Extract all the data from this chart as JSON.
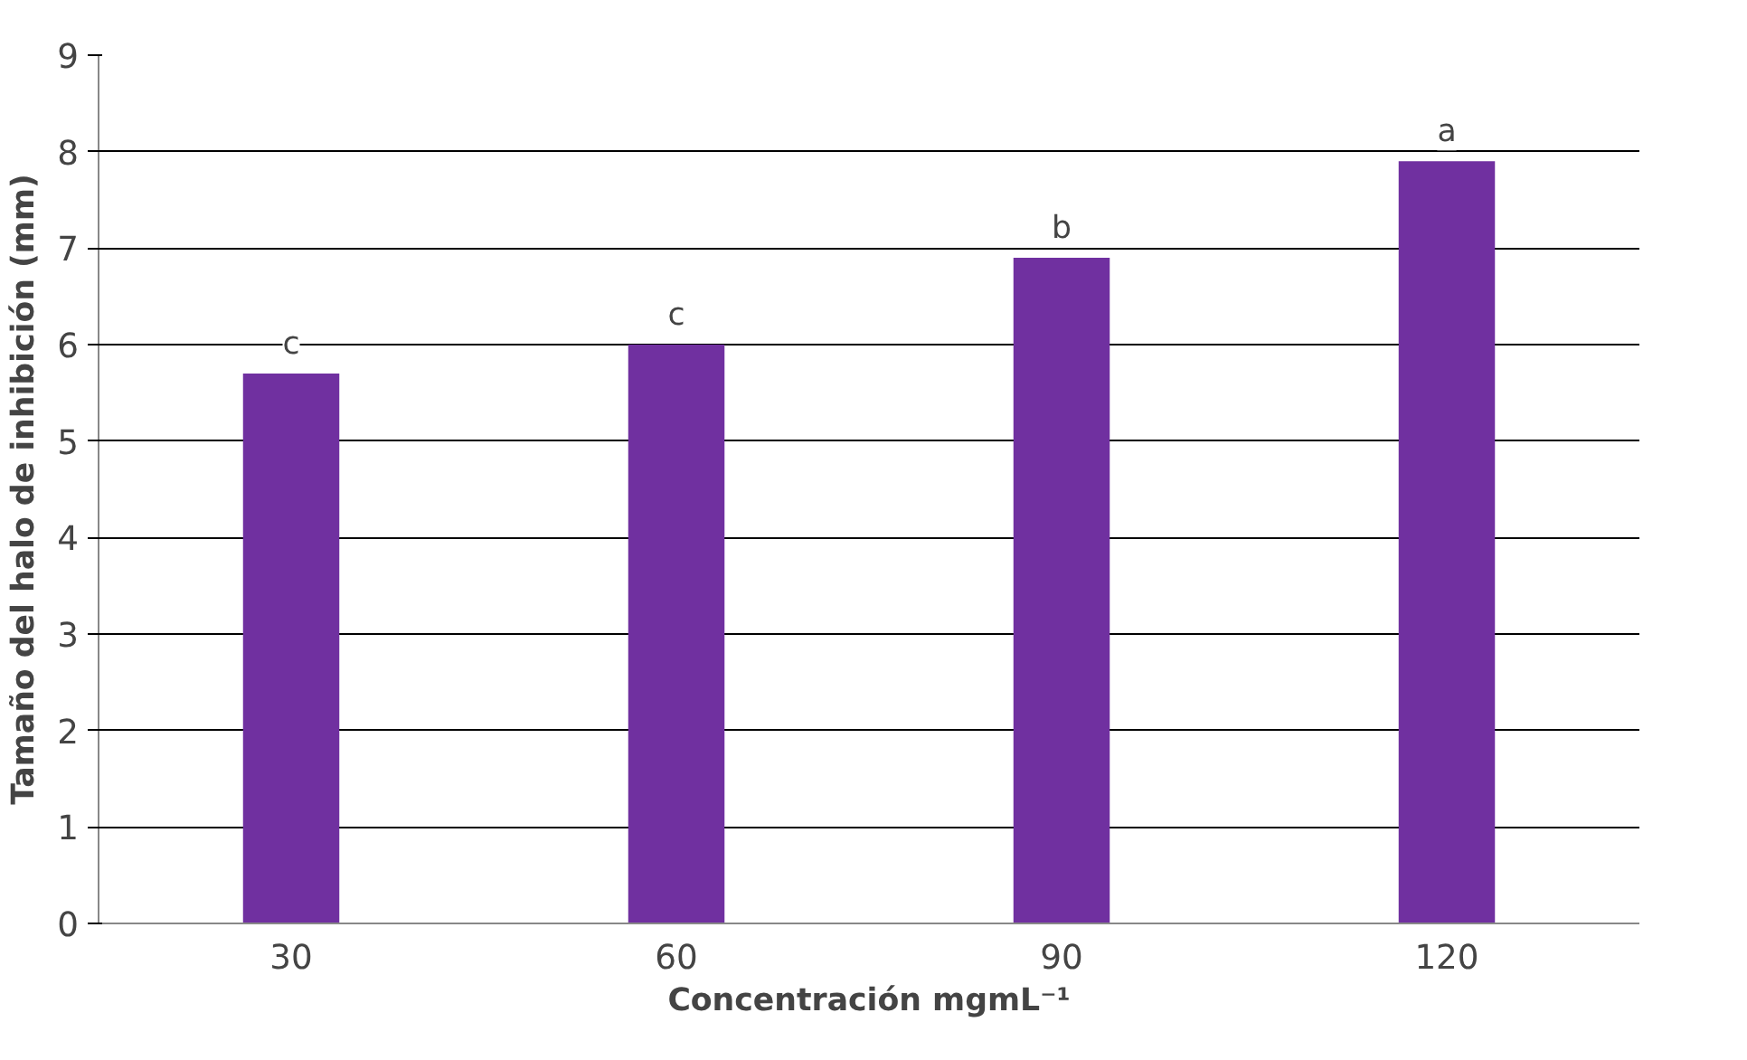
{
  "chart_data": {
    "type": "bar",
    "xlabel": "Concentración mgmL⁻¹",
    "ylabel": "Tamaño del halo de inhibición (mm)",
    "categories": [
      "30",
      "60",
      "90",
      "120"
    ],
    "values": [
      5.7,
      6.0,
      6.9,
      7.9
    ],
    "color": "#7030a0",
    "ylim": [
      0,
      9
    ],
    "yticks": [
      0,
      1,
      2,
      3,
      4,
      5,
      6,
      7,
      8,
      9
    ],
    "grid": "y",
    "annotations": [
      {
        "text": "c",
        "x": "30",
        "y": 5.7
      },
      {
        "text": "c",
        "x": "60",
        "y": 6.0
      },
      {
        "text": "b",
        "x": "90",
        "y": 6.9
      },
      {
        "text": "a",
        "x": "120",
        "y": 7.9
      }
    ]
  }
}
